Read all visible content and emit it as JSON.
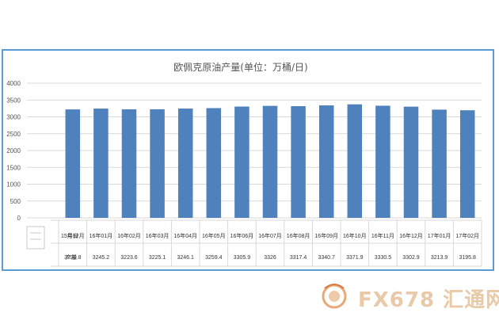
{
  "chart_data": {
    "type": "bar",
    "title": "欧佩克原油产量(单位：万桶/日)",
    "categories": [
      "15年12月",
      "16年01月",
      "16年02月",
      "16年03月",
      "16年04月",
      "16年05月",
      "16年06月",
      "16年07月",
      "16年08月",
      "16年09月",
      "16年10月",
      "16年11月",
      "16年12月",
      "17年01月",
      "17年02月"
    ],
    "values": [
      3220.8,
      3245.2,
      3223.6,
      3225.1,
      3246.1,
      3259.4,
      3305.9,
      3326,
      3317.4,
      3340.7,
      3371.9,
      3330.5,
      3302.9,
      3213.9,
      3195.8
    ],
    "value_labels": [
      "3220.8",
      "3245.2",
      "3223.6",
      "3225.1",
      "3246.1",
      "3259.4",
      "3305.9",
      "3326",
      "3317.4",
      "3340.7",
      "3371.9",
      "3330.5",
      "3302.9",
      "3213.9",
      "3195.8"
    ],
    "yticks": [
      "4000",
      "3500",
      "3000",
      "2500",
      "2000",
      "1500",
      "1000",
      "500",
      "0"
    ],
    "ylim": [
      0,
      4000
    ],
    "grid": true,
    "table_row_labels": {
      "category": "月份",
      "value": "产量"
    },
    "bar_color": "#4f81bd"
  },
  "watermark": {
    "text": "FX678 汇通网"
  }
}
